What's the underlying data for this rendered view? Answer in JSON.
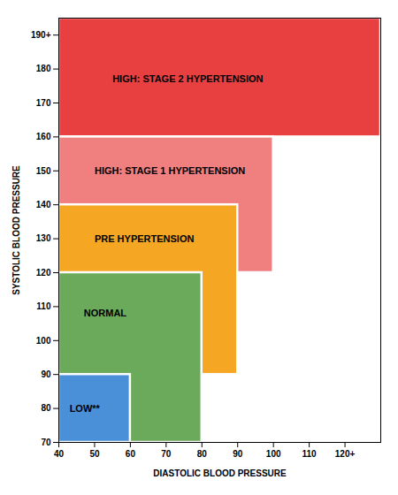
{
  "chart_data": {
    "type": "regions",
    "xlabel": "DIASTOLIC BLOOD PRESSURE",
    "ylabel": "SYSTOLIC BLOOD PRESSURE",
    "xlim": [
      40,
      130
    ],
    "ylim": [
      70,
      195
    ],
    "xticks": [
      40,
      50,
      60,
      70,
      80,
      90,
      100,
      110,
      {
        "value": 120,
        "label": "120+"
      }
    ],
    "yticks": [
      70,
      80,
      90,
      100,
      110,
      120,
      130,
      140,
      150,
      160,
      170,
      180,
      {
        "value": 190,
        "label": "190+"
      }
    ],
    "grid": false,
    "regions": [
      {
        "name": "HIGH: STAGE 2 HYPERTENSION",
        "color": "#e84040",
        "x_left": 40,
        "x_right": 130,
        "y_bottom": 160,
        "y_top": 195,
        "label_x": 55,
        "label_y": 177
      },
      {
        "name": "HIGH: STAGE 1 HYPERTENSION",
        "color": "#f08080",
        "x_left": 40,
        "x_right": 100,
        "y_bottom": 120,
        "y_top": 160,
        "label_x": 50,
        "label_y": 150
      },
      {
        "name": "PRE HYPERTENSION",
        "color": "#f5a623",
        "x_left": 40,
        "x_right": 90,
        "y_bottom": 90,
        "y_top": 140,
        "label_x": 50,
        "label_y": 130
      },
      {
        "name": "NORMAL",
        "color": "#6aaa5a",
        "x_left": 40,
        "x_right": 80,
        "y_bottom": 70,
        "y_top": 120,
        "label_x": 47,
        "label_y": 108
      },
      {
        "name": "LOW**",
        "color": "#4a90d9",
        "x_left": 40,
        "x_right": 60,
        "y_bottom": 70,
        "y_top": 90,
        "label_x": 43,
        "label_y": 80
      }
    ]
  }
}
